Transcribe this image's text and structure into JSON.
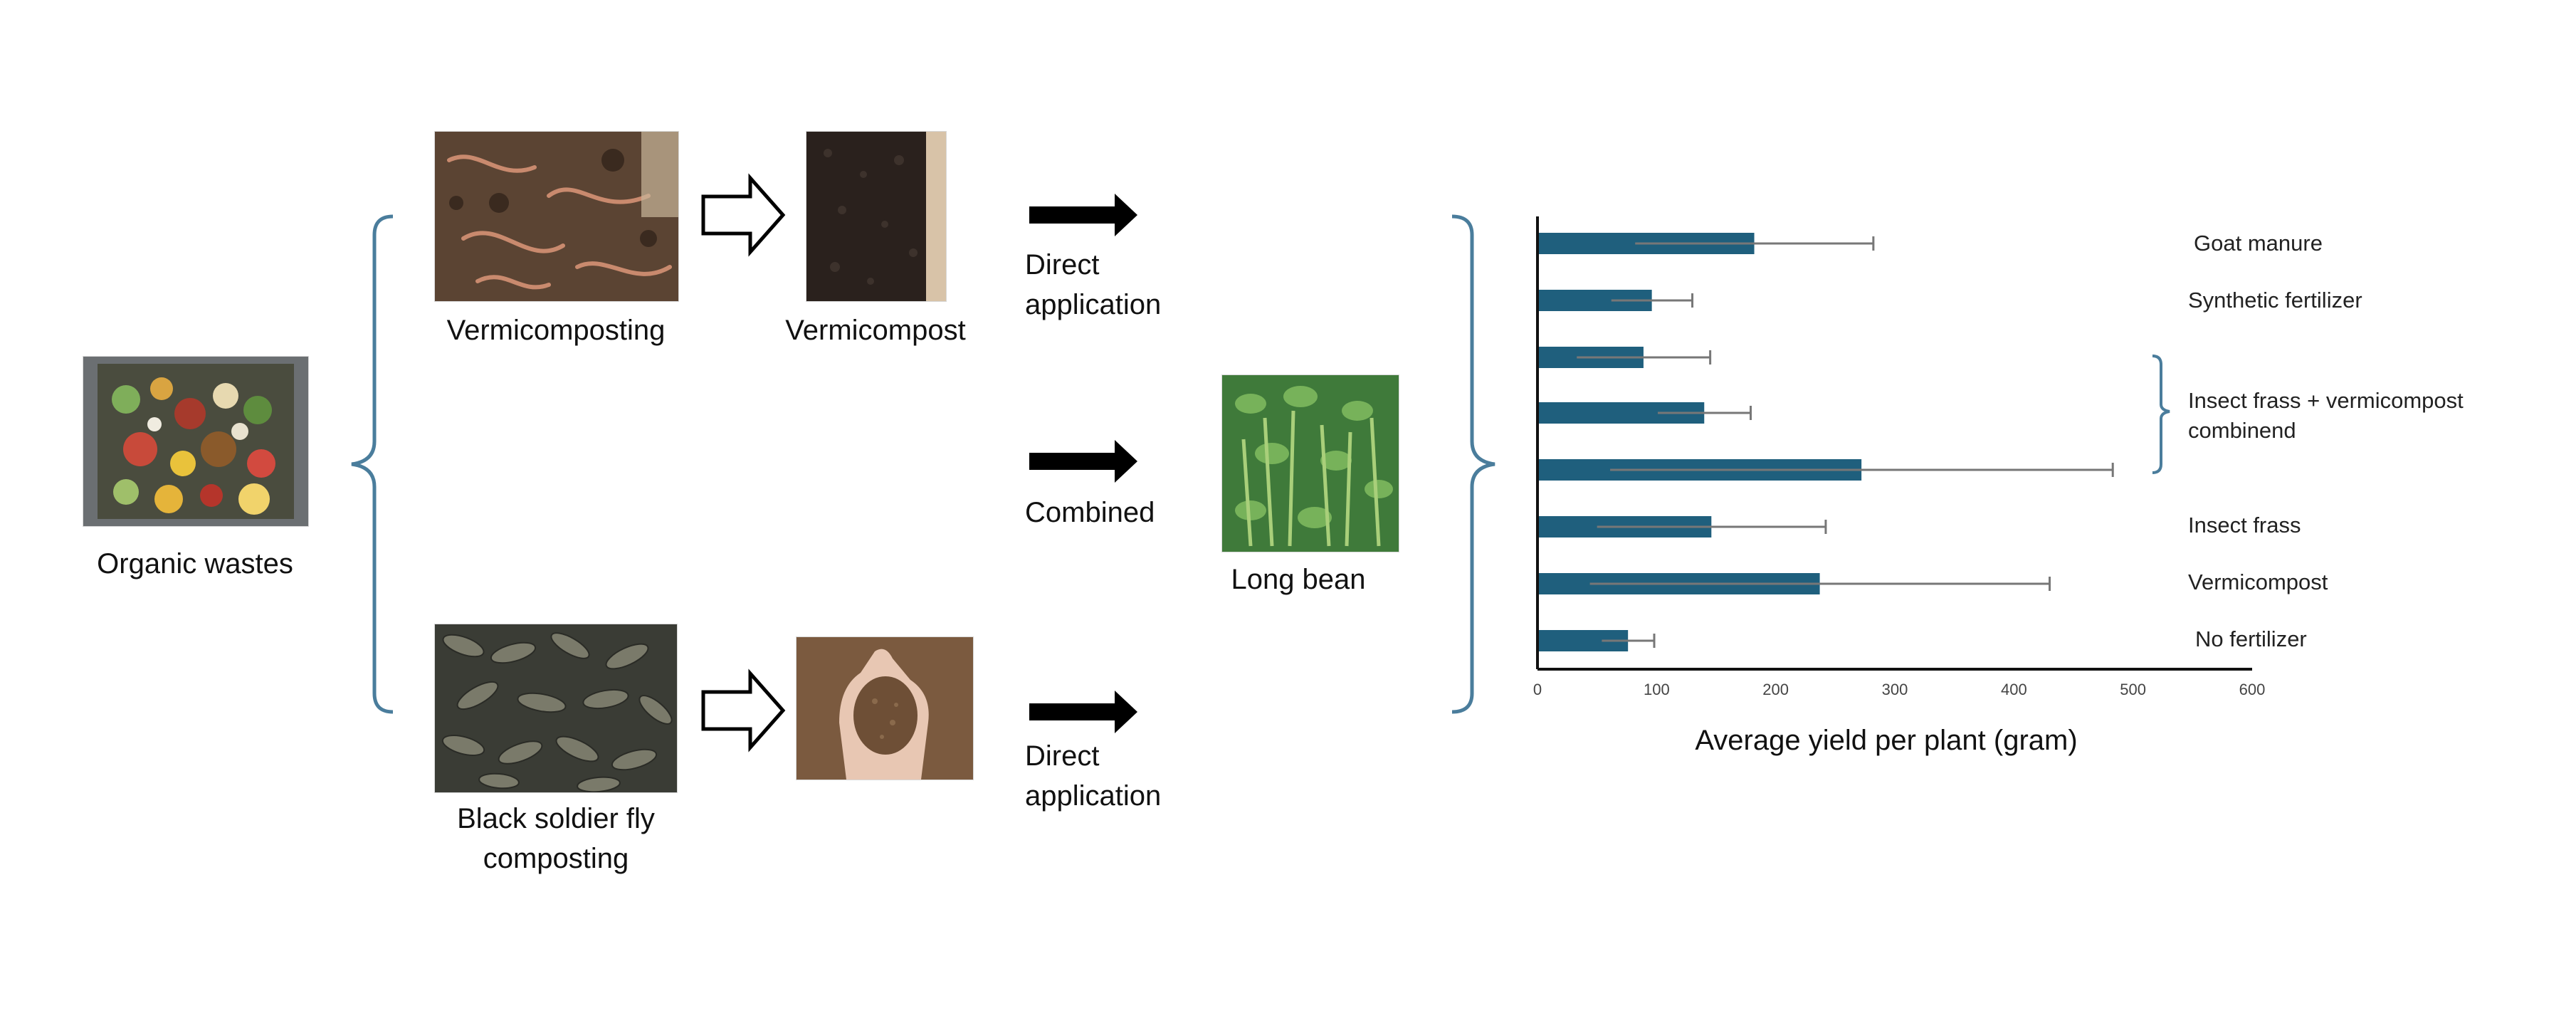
{
  "labels": {
    "organic_wastes": "Organic wastes",
    "vermicomposting": "Vermicomposting",
    "vermicompost": "Vermicompost",
    "bsf_line1": "Black soldier fly",
    "bsf_line2": "composting",
    "direct_top_1": "Direct",
    "direct_top_2": "application",
    "combined": "Combined",
    "direct_bottom_1": "Direct",
    "direct_bottom_2": "application",
    "long_bean": "Long bean"
  },
  "colors": {
    "bracket": "#4a7d9c",
    "bar": "#1f5f7d",
    "arrow": "#000000"
  },
  "icons": {
    "hollow_arrow": "hollow-right-arrow-icon",
    "solid_arrow": "solid-right-arrow-icon",
    "bracket": "curly-brace-icon"
  },
  "chart_data": {
    "type": "bar",
    "orientation": "horizontal",
    "categories": [
      "Goat manure",
      "Synthetic fertilizer",
      "Insect frass + vermicompost combinend (1)",
      "Insect frass + vermicompost combinend (2)",
      "Insect frass + vermicompost combinend (3)",
      "Insect frass",
      "Vermicompost",
      "No fertilizer"
    ],
    "values": [
      182,
      96,
      89,
      140,
      272,
      146,
      237,
      76
    ],
    "errors": [
      100,
      34,
      56,
      39,
      211,
      96,
      193,
      22
    ],
    "xlabel": "Average yield per plant (gram)",
    "xlim": [
      0,
      600
    ],
    "xticks": [
      0,
      100,
      200,
      300,
      400,
      500,
      600
    ],
    "legend_labels": [
      {
        "text": "Goat manure"
      },
      {
        "text": "Synthetic fertilizer"
      },
      {
        "text": "Insect frass + vermicompost\ncombinend"
      },
      {
        "text": "Insect frass"
      },
      {
        "text": "Vermicompost"
      },
      {
        "text": "No fertilizer"
      }
    ],
    "grid": false
  }
}
